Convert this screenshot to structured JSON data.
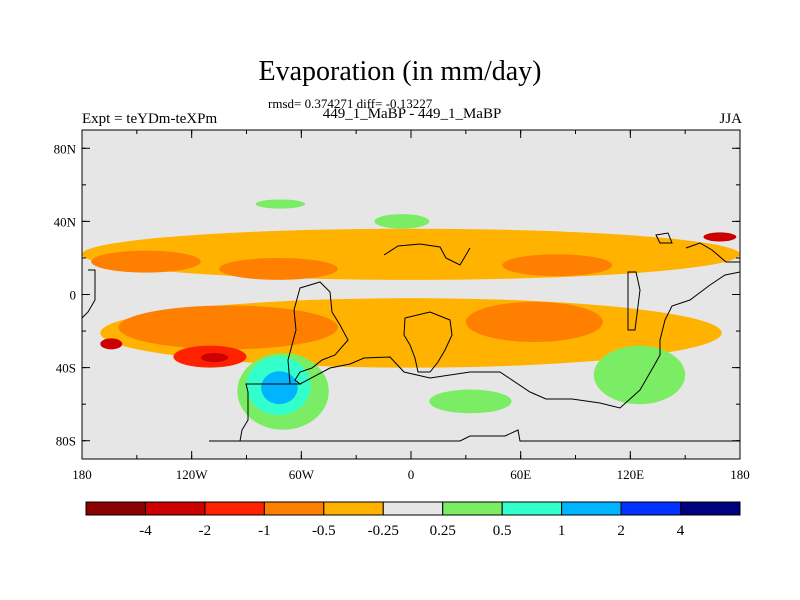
{
  "chart_data": {
    "type": "heatmap",
    "title": "Evaporation (in mm/day)",
    "stats": "rmsd= 0.374271 diff= -0.13227",
    "subtitle": "449_1_MaBP - 449_1_MaBP",
    "left_label": "Expt = teYDm-teXPm",
    "right_label": "JJA",
    "x_range": [
      -180,
      180
    ],
    "y_range": [
      -90,
      90
    ],
    "x_ticks": [
      {
        "value": -180,
        "label": "180"
      },
      {
        "value": -120,
        "label": "120W"
      },
      {
        "value": -60,
        "label": "60W"
      },
      {
        "value": 0,
        "label": "0"
      },
      {
        "value": 60,
        "label": "60E"
      },
      {
        "value": 120,
        "label": "120E"
      },
      {
        "value": 180,
        "label": "180"
      }
    ],
    "y_ticks": [
      {
        "value": 80,
        "label": "80N"
      },
      {
        "value": 40,
        "label": "40N"
      },
      {
        "value": 0,
        "label": "0"
      },
      {
        "value": -40,
        "label": "40S"
      },
      {
        "value": -80,
        "label": "80S"
      }
    ],
    "colorbar": {
      "colors": [
        "#8b0000",
        "#cc0000",
        "#ff2200",
        "#ff7f00",
        "#ffb300",
        "#e6e6e6",
        "#7aed64",
        "#33ffcc",
        "#00b4ff",
        "#0033ff",
        "#000080"
      ],
      "labels": [
        "-4",
        "-2",
        "-1",
        "-0.5",
        "-0.25",
        "0.25",
        "0.5",
        "1",
        "2",
        "4"
      ]
    },
    "regions": [
      {
        "level": "-0.25",
        "color": "#ffb300",
        "lon": [
          -180,
          180
        ],
        "lat": [
          8,
          36
        ],
        "note": "northern subtropical band"
      },
      {
        "level": "-0.5",
        "color": "#ff7f00",
        "lon": [
          -175,
          -115
        ],
        "lat": [
          12,
          24
        ]
      },
      {
        "level": "-0.5",
        "color": "#ff7f00",
        "lon": [
          -105,
          -40
        ],
        "lat": [
          8,
          20
        ]
      },
      {
        "level": "-0.5",
        "color": "#ff7f00",
        "lon": [
          50,
          110
        ],
        "lat": [
          10,
          22
        ]
      },
      {
        "level": "-0.25",
        "color": "#ffb300",
        "lon": [
          -170,
          170
        ],
        "lat": [
          -40,
          -2
        ],
        "note": "southern tropical band"
      },
      {
        "level": "-0.5",
        "color": "#ff7f00",
        "lon": [
          -160,
          -40
        ],
        "lat": [
          -30,
          -6
        ]
      },
      {
        "level": "-0.5",
        "color": "#ff7f00",
        "lon": [
          30,
          105
        ],
        "lat": [
          -26,
          -4
        ]
      },
      {
        "level": "-1",
        "color": "#ff2200",
        "lon": [
          -130,
          -90
        ],
        "lat": [
          -40,
          -28
        ]
      },
      {
        "level": "-2",
        "color": "#cc0000",
        "lon": [
          -115,
          -100
        ],
        "lat": [
          -37,
          -32
        ]
      },
      {
        "level": "-2",
        "color": "#cc0000",
        "lon": [
          -170,
          -158
        ],
        "lat": [
          -30,
          -24
        ]
      },
      {
        "level": "-2",
        "color": "#cc0000",
        "lon": [
          160,
          178
        ],
        "lat": [
          29,
          34
        ]
      },
      {
        "level": "0.5",
        "color": "#7aed64",
        "lon": [
          -95,
          -45
        ],
        "lat": [
          -74,
          -32
        ]
      },
      {
        "level": "1",
        "color": "#33ffcc",
        "lon": [
          -90,
          -55
        ],
        "lat": [
          -66,
          -34
        ]
      },
      {
        "level": "2",
        "color": "#00b4ff",
        "lon": [
          -82,
          -62
        ],
        "lat": [
          -60,
          -42
        ]
      },
      {
        "level": "0.25",
        "color": "#7aed64",
        "lon": [
          -85,
          -58
        ],
        "lat": [
          47,
          52
        ]
      },
      {
        "level": "0.25",
        "color": "#7aed64",
        "lon": [
          -20,
          10
        ],
        "lat": [
          36,
          44
        ]
      },
      {
        "level": "0.25",
        "color": "#7aed64",
        "lon": [
          10,
          55
        ],
        "lat": [
          -65,
          -52
        ]
      },
      {
        "level": "0.5",
        "color": "#7aed64",
        "lon": [
          100,
          150
        ],
        "lat": [
          -60,
          -28
        ]
      }
    ]
  }
}
